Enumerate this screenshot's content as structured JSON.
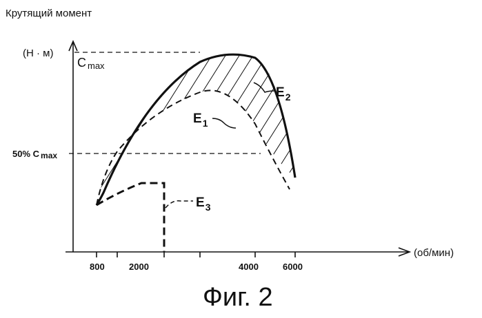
{
  "figure": {
    "y_axis_title": "Крутящий момент",
    "y_unit": "(Н · м)",
    "x_unit": "(об/мин)",
    "caption": "Фиг. 2",
    "cmax_label": "C",
    "cmax_sub": "max",
    "half_cmax_label": "50% C",
    "half_cmax_sub": "max",
    "x_ticks": [
      {
        "label": "800"
      },
      {
        "label": "2000"
      },
      {
        "label": "4000"
      },
      {
        "label": "6000"
      }
    ],
    "curves": [
      {
        "id": "E2",
        "letter": "E",
        "sub": "2",
        "style": "solid-bold"
      },
      {
        "id": "E1",
        "letter": "E",
        "sub": "1",
        "style": "dashed"
      },
      {
        "id": "E3",
        "letter": "E",
        "sub": "3",
        "style": "dashed-bold"
      }
    ]
  }
}
